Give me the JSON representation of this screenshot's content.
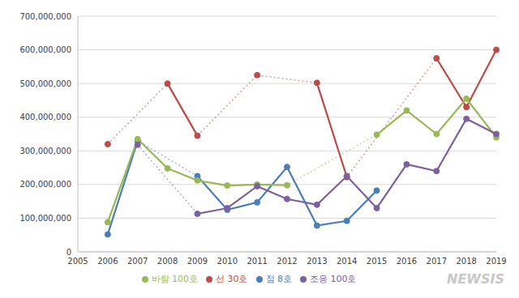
{
  "chart_data": {
    "type": "line",
    "categories": [
      "2005",
      "2006",
      "2007",
      "2008",
      "2009",
      "2010",
      "2011",
      "2012",
      "2013",
      "2014",
      "2015",
      "2016",
      "2017",
      "2018",
      "2019"
    ],
    "series": [
      {
        "name": "점 8호",
        "color": "#4a7ebb",
        "values": [
          null,
          52000000,
          330000000,
          null,
          225000000,
          125000000,
          147000000,
          252000000,
          78000000,
          92000000,
          182000000,
          null,
          null,
          null,
          null
        ]
      },
      {
        "name": "선 30호",
        "color": "#be4b48",
        "values": [
          null,
          320000000,
          null,
          500000000,
          345000000,
          null,
          525000000,
          null,
          502000000,
          222000000,
          null,
          null,
          575000000,
          430000000,
          600000000
        ]
      },
      {
        "name": "바람 100호",
        "color": "#98b954",
        "values": [
          null,
          88000000,
          335000000,
          248000000,
          212000000,
          197000000,
          200000000,
          198000000,
          null,
          null,
          348000000,
          420000000,
          350000000,
          455000000,
          340000000
        ]
      },
      {
        "name": "조응 100호",
        "color": "#7d60a0",
        "values": [
          null,
          null,
          318000000,
          null,
          113000000,
          130000000,
          195000000,
          157000000,
          140000000,
          225000000,
          130000000,
          260000000,
          240000000,
          395000000,
          350000000
        ]
      }
    ],
    "ylim": [
      0,
      700000000
    ],
    "yticks": [
      0,
      {
        "value": 100000000,
        "label": "100,000,000"
      },
      {
        "value": 200000000,
        "label": "200,000,000"
      },
      {
        "value": 300000000,
        "label": "300,000,000"
      },
      {
        "value": 400000000,
        "label": "400,000,000"
      },
      {
        "value": 500000000,
        "label": "500,000,000"
      },
      {
        "value": 600000000,
        "label": "600,000,000"
      },
      {
        "value": 700000000,
        "label": "700,000,000"
      }
    ],
    "grid": true,
    "legend": "bottom",
    "marker": "circle",
    "annotations": [
      "NEWSIS"
    ]
  }
}
